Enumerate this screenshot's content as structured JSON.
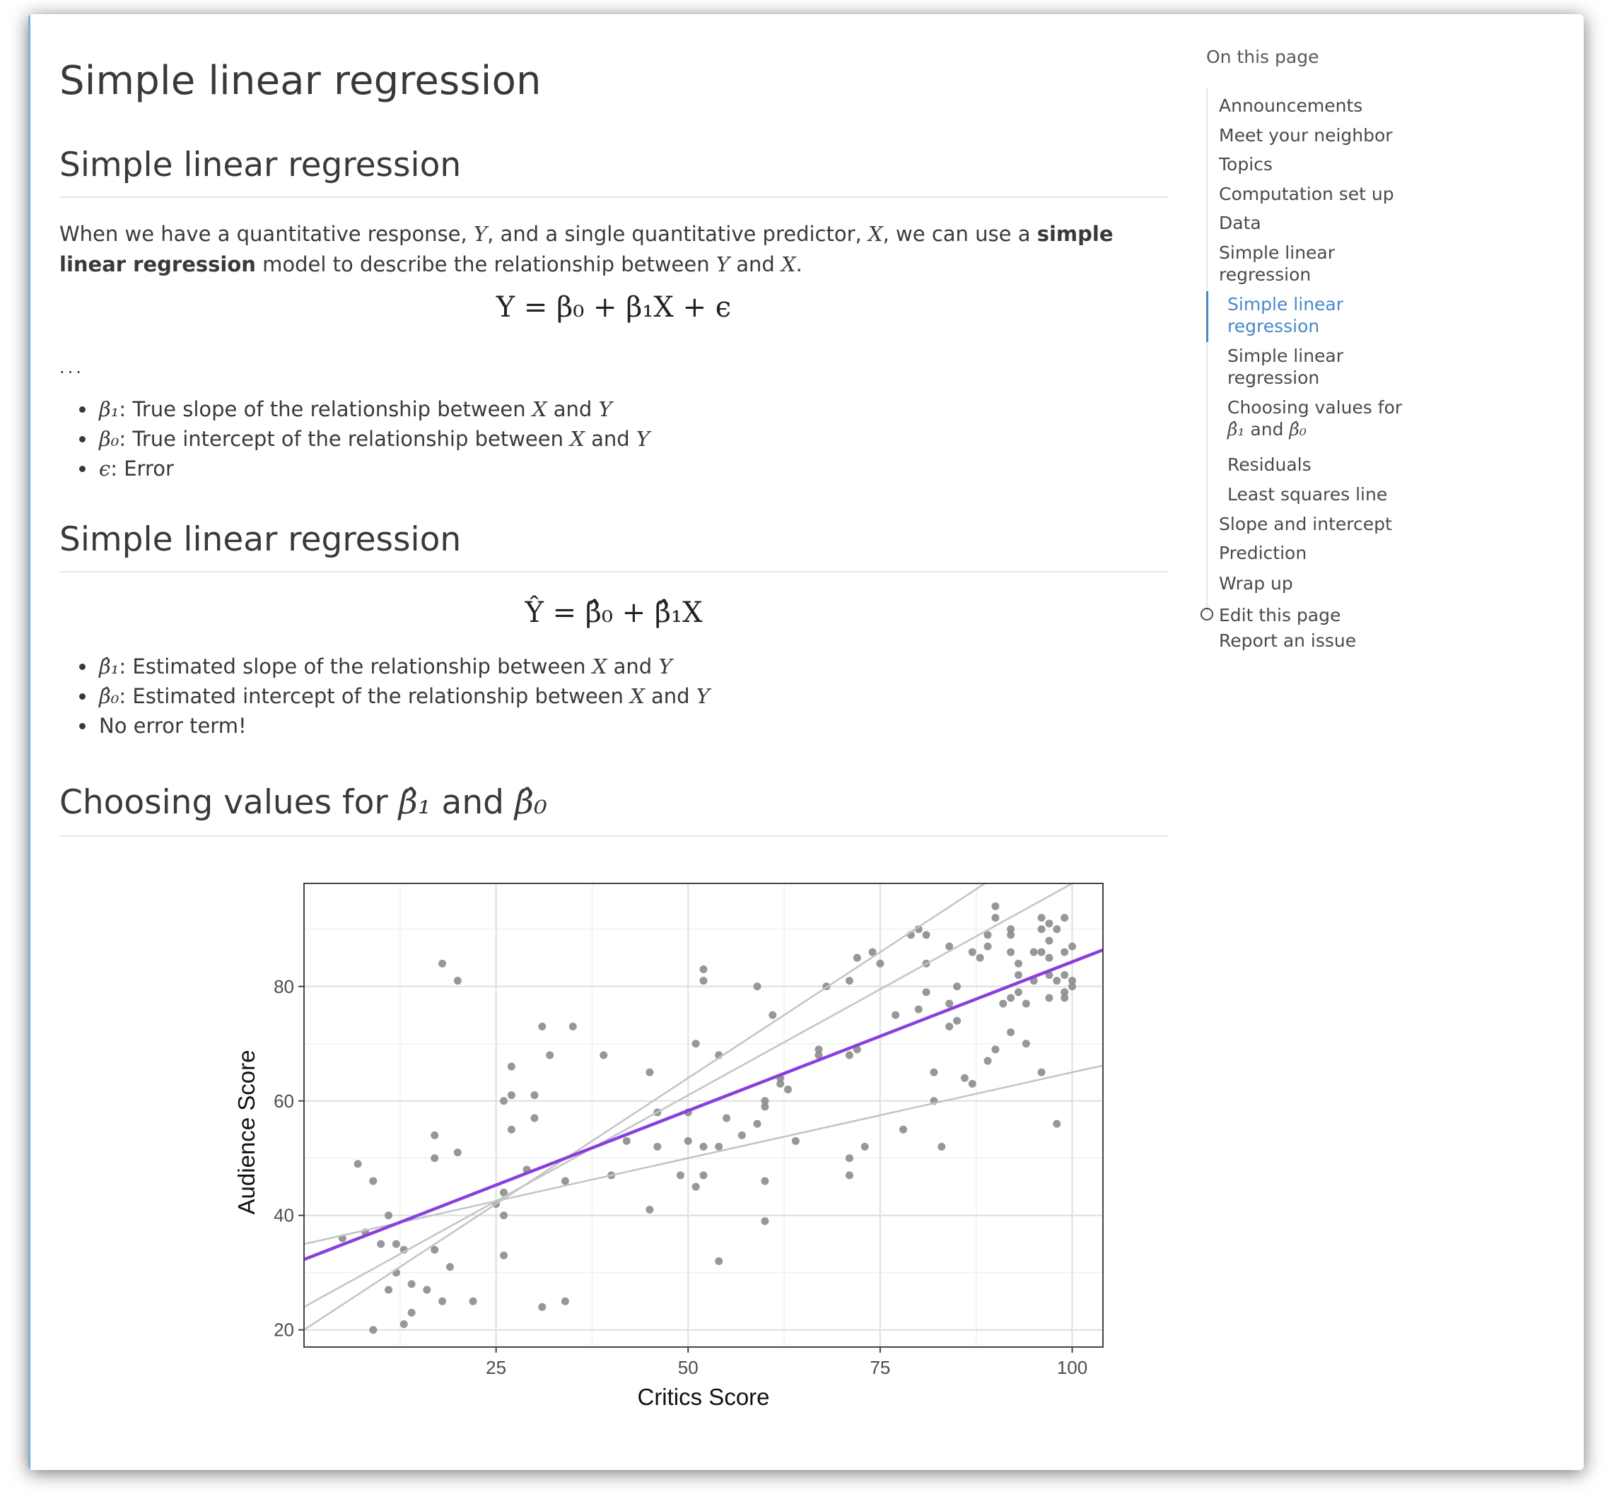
{
  "page": {
    "title": "Simple linear regression"
  },
  "section1": {
    "heading": "Simple linear regression",
    "intro_parts": [
      "When we have a quantitative response, ",
      "Y",
      ", and a single quantitative predictor, ",
      "X",
      ", we can use a ",
      "simple linear regression",
      " model to describe the relationship between ",
      "Y",
      " and ",
      "X",
      "."
    ],
    "equation": "Y = β₀ + β₁X + ϵ",
    "ellipsis": "...",
    "bullets": [
      {
        "sym": "β₁",
        "text": ": True slope of the relationship between ",
        "a": "X",
        "and": " and ",
        "b": "Y"
      },
      {
        "sym": "β₀",
        "text": ": True intercept of the relationship between ",
        "a": "X",
        "and": " and ",
        "b": "Y"
      },
      {
        "sym": "ϵ",
        "text": ": Error",
        "a": "",
        "and": "",
        "b": ""
      }
    ]
  },
  "section2": {
    "heading": "Simple linear regression",
    "equation": "Ŷ = β̂₀ + β̂₁X",
    "bullets": [
      {
        "sym": "β̂₁",
        "text": ": Estimated slope of the relationship between ",
        "a": "X",
        "and": " and ",
        "b": "Y"
      },
      {
        "sym": "β̂₀",
        "text": ": Estimated intercept of the relationship between ",
        "a": "X",
        "and": " and ",
        "b": "Y"
      },
      {
        "sym": "",
        "text": "No error term!",
        "a": "",
        "and": "",
        "b": ""
      }
    ]
  },
  "section3": {
    "heading_text": "Choosing values for ",
    "heading_sym1": "β̂₁",
    "heading_and": " and ",
    "heading_sym2": "β̂₀"
  },
  "chart_data": {
    "type": "scatter",
    "xlabel": "Critics Score",
    "ylabel": "Audience Score",
    "xlim": [
      0,
      104
    ],
    "ylim": [
      17,
      98
    ],
    "xticks": [
      25,
      50,
      75,
      100
    ],
    "yticks": [
      20,
      40,
      60,
      80
    ],
    "grid": true,
    "points": [
      [
        5,
        36
      ],
      [
        7,
        49
      ],
      [
        8,
        37
      ],
      [
        9,
        46
      ],
      [
        9,
        20
      ],
      [
        10,
        35
      ],
      [
        11,
        27
      ],
      [
        11,
        40
      ],
      [
        12,
        35
      ],
      [
        12,
        30
      ],
      [
        13,
        34
      ],
      [
        13,
        21
      ],
      [
        14,
        28
      ],
      [
        14,
        23
      ],
      [
        16,
        27
      ],
      [
        17,
        34
      ],
      [
        17,
        50
      ],
      [
        17,
        54
      ],
      [
        18,
        25
      ],
      [
        18,
        84
      ],
      [
        19,
        31
      ],
      [
        20,
        81
      ],
      [
        20,
        51
      ],
      [
        22,
        25
      ],
      [
        25,
        42
      ],
      [
        26,
        40
      ],
      [
        26,
        33
      ],
      [
        26,
        60
      ],
      [
        26,
        44
      ],
      [
        27,
        66
      ],
      [
        27,
        61
      ],
      [
        27,
        55
      ],
      [
        29,
        48
      ],
      [
        30,
        57
      ],
      [
        30,
        61
      ],
      [
        31,
        24
      ],
      [
        31,
        73
      ],
      [
        32,
        68
      ],
      [
        34,
        46
      ],
      [
        34,
        25
      ],
      [
        35,
        73
      ],
      [
        39,
        68
      ],
      [
        40,
        47
      ],
      [
        42,
        53
      ],
      [
        45,
        65
      ],
      [
        45,
        41
      ],
      [
        46,
        58
      ],
      [
        46,
        52
      ],
      [
        49,
        47
      ],
      [
        50,
        53
      ],
      [
        50,
        58
      ],
      [
        51,
        45
      ],
      [
        51,
        70
      ],
      [
        52,
        52
      ],
      [
        52,
        83
      ],
      [
        52,
        81
      ],
      [
        52,
        47
      ],
      [
        54,
        68
      ],
      [
        54,
        52
      ],
      [
        54,
        32
      ],
      [
        55,
        57
      ],
      [
        57,
        54
      ],
      [
        59,
        80
      ],
      [
        59,
        56
      ],
      [
        60,
        60
      ],
      [
        60,
        59
      ],
      [
        60,
        46
      ],
      [
        60,
        39
      ],
      [
        61,
        75
      ],
      [
        62,
        64
      ],
      [
        62,
        63
      ],
      [
        63,
        62
      ],
      [
        64,
        53
      ],
      [
        67,
        68
      ],
      [
        67,
        69
      ],
      [
        68,
        80
      ],
      [
        71,
        81
      ],
      [
        71,
        68
      ],
      [
        71,
        50
      ],
      [
        71,
        47
      ],
      [
        72,
        69
      ],
      [
        72,
        85
      ],
      [
        73,
        52
      ],
      [
        74,
        86
      ],
      [
        75,
        84
      ],
      [
        77,
        75
      ],
      [
        78,
        55
      ],
      [
        79,
        89
      ],
      [
        80,
        90
      ],
      [
        80,
        76
      ],
      [
        81,
        84
      ],
      [
        81,
        79
      ],
      [
        81,
        89
      ],
      [
        82,
        60
      ],
      [
        82,
        65
      ],
      [
        83,
        52
      ],
      [
        84,
        87
      ],
      [
        84,
        77
      ],
      [
        84,
        73
      ],
      [
        85,
        74
      ],
      [
        85,
        80
      ],
      [
        86,
        64
      ],
      [
        87,
        63
      ],
      [
        87,
        86
      ],
      [
        88,
        85
      ],
      [
        89,
        67
      ],
      [
        89,
        87
      ],
      [
        89,
        89
      ],
      [
        90,
        94
      ],
      [
        90,
        92
      ],
      [
        90,
        69
      ],
      [
        91,
        77
      ],
      [
        92,
        90
      ],
      [
        92,
        89
      ],
      [
        92,
        86
      ],
      [
        92,
        72
      ],
      [
        92,
        78
      ],
      [
        93,
        82
      ],
      [
        93,
        84
      ],
      [
        93,
        79
      ],
      [
        94,
        70
      ],
      [
        94,
        77
      ],
      [
        95,
        81
      ],
      [
        95,
        86
      ],
      [
        96,
        92
      ],
      [
        96,
        65
      ],
      [
        96,
        90
      ],
      [
        96,
        86
      ],
      [
        97,
        91
      ],
      [
        97,
        88
      ],
      [
        97,
        85
      ],
      [
        97,
        82
      ],
      [
        97,
        78
      ],
      [
        98,
        56
      ],
      [
        98,
        81
      ],
      [
        98,
        90
      ],
      [
        99,
        92
      ],
      [
        99,
        86
      ],
      [
        99,
        79
      ],
      [
        99,
        78
      ],
      [
        99,
        82
      ],
      [
        100,
        81
      ],
      [
        100,
        87
      ],
      [
        100,
        80
      ]
    ],
    "fit_line": {
      "intercept": 32.3,
      "slope": 0.52,
      "color": "#8a3ee0"
    },
    "candidate_lines": [
      {
        "intercept": 20,
        "slope": 0.88
      },
      {
        "intercept": 24,
        "slope": 0.74
      },
      {
        "intercept": 35,
        "slope": 0.3
      }
    ]
  },
  "toc": {
    "title": "On this page",
    "items": [
      {
        "label": "Announcements",
        "level": 1
      },
      {
        "label": "Meet your neighbor",
        "level": 1
      },
      {
        "label": "Topics",
        "level": 1
      },
      {
        "label": "Computation set up",
        "level": 1
      },
      {
        "label": "Data",
        "level": 1
      },
      {
        "label": "Simple linear regression",
        "level": 1
      },
      {
        "label": "Simple linear regression",
        "level": 2,
        "active": true
      },
      {
        "label": "Simple linear regression",
        "level": 2
      },
      {
        "label": "Choosing values for",
        "level": 2
      },
      {
        "label": "Residuals",
        "level": 2
      },
      {
        "label": "Least squares line",
        "level": 2
      },
      {
        "label": "Slope and intercept",
        "level": 1
      },
      {
        "label": "Prediction",
        "level": 1
      },
      {
        "label": "Wrap up",
        "level": 1
      }
    ],
    "choosing_sym1": "β̂₁",
    "choosing_and": " and ",
    "choosing_sym2": "β̂₀",
    "edit_link": "Edit this page",
    "issue_link": "Report an issue"
  },
  "colors": {
    "text": "#373a3c",
    "toc_active": "#4a88c7",
    "fit_line": "#8a3ee0",
    "candidate_line": "#c4c4c4",
    "point": "#8c8c8c"
  }
}
